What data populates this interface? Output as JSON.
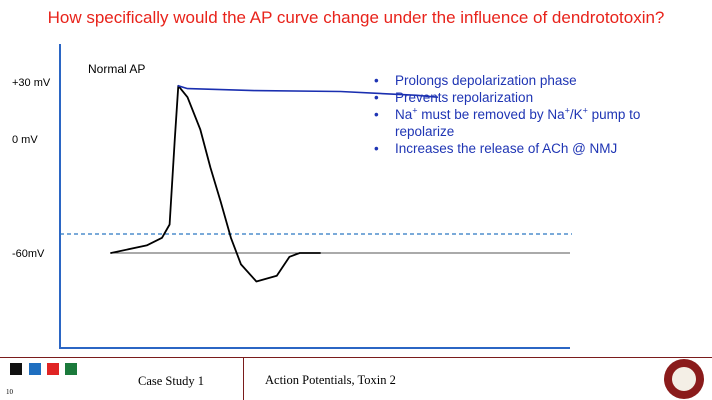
{
  "slide": {
    "title": "How specifically would the AP curve change under the influence of dendrototoxin?",
    "footer_left": "Case Study 1",
    "footer_right": "Action Potentials, Toxin 2",
    "slide_number": "10",
    "squares": [
      "#111111",
      "#1f6fc0",
      "#e02424",
      "#1b7a3b"
    ]
  },
  "chart_data": {
    "type": "line",
    "title": "",
    "xlabel": "",
    "ylabel": "",
    "ylim": [
      -110,
      50
    ],
    "xlim": [
      0,
      100
    ],
    "y_ticks": [
      {
        "value": 30,
        "label": "+30 mV"
      },
      {
        "value": 0,
        "label": "0 mV"
      },
      {
        "value": -60,
        "label": "-60mV"
      }
    ],
    "resting_line": {
      "y": -60,
      "color": "#555555"
    },
    "threshold_line": {
      "y": -50,
      "style": "dashed",
      "color": "#2b78c2"
    },
    "series": [
      {
        "name": "Normal AP",
        "color": "#000000",
        "points": [
          [
            10,
            -60
          ],
          [
            17,
            -56
          ],
          [
            20,
            -52
          ],
          [
            21.5,
            -45
          ],
          [
            22.5,
            0
          ],
          [
            23.2,
            28
          ],
          [
            25,
            22
          ],
          [
            27.5,
            5
          ],
          [
            29.5,
            -15
          ],
          [
            31.5,
            -33
          ],
          [
            33.5,
            -52
          ],
          [
            35.5,
            -66
          ],
          [
            38.5,
            -75
          ],
          [
            42.5,
            -72
          ],
          [
            44,
            -66
          ],
          [
            45,
            -62
          ],
          [
            47,
            -60
          ],
          [
            51,
            -60
          ]
        ]
      },
      {
        "name": "",
        "color": "#1a2fb0",
        "points": [
          [
            23.2,
            28
          ],
          [
            25,
            26.5
          ],
          [
            38,
            25.5
          ],
          [
            55,
            25
          ],
          [
            70,
            23
          ],
          [
            74,
            22
          ]
        ]
      }
    ]
  },
  "bullets": [
    "Prolongs depolarization phase",
    "Prevents repolarization",
    "Na",
    "Increases the release of ACh @ NMJ"
  ],
  "bullet3_parts": {
    "na": "Na",
    "plus1": "+",
    "mid": " must be removed by Na",
    "plus2": "+",
    "k": "/K",
    "plus3": "+",
    "end": " pump to repolarize"
  }
}
